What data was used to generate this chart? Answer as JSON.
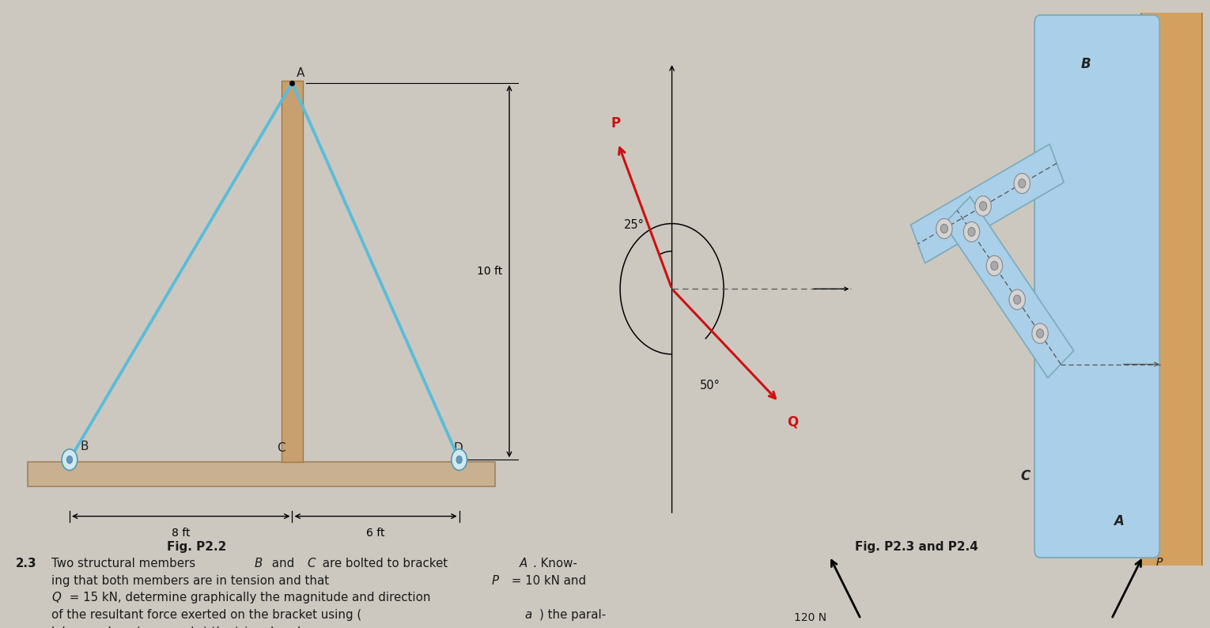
{
  "bg_color": "#ccc8c0",
  "fig_width": 15.3,
  "fig_height": 7.94,
  "left_panel": {
    "label": "Fig. P2.2",
    "cable_color": "#5bbcd8",
    "post_color_face": "#c8a070",
    "post_color_edge": "#a07840",
    "ground_color_face": "#c8b090",
    "ground_color_edge": "#a08060",
    "dim_8ft": "8 ft",
    "dim_6ft": "6 ft",
    "dim_10ft": "10 ft"
  },
  "right_panel": {
    "label": "Fig. P2.3 and P2.4",
    "bracket_color": "#aacfe8",
    "bracket_edge": "#7aaabb",
    "wall_color": "#d4a060",
    "wall_edge": "#b07830",
    "arrow_color": "#cc1111",
    "angle_25_label": "25°",
    "angle_50_label": "50°",
    "dashed_color": "#555555"
  },
  "text_color": "#1a1a1a"
}
